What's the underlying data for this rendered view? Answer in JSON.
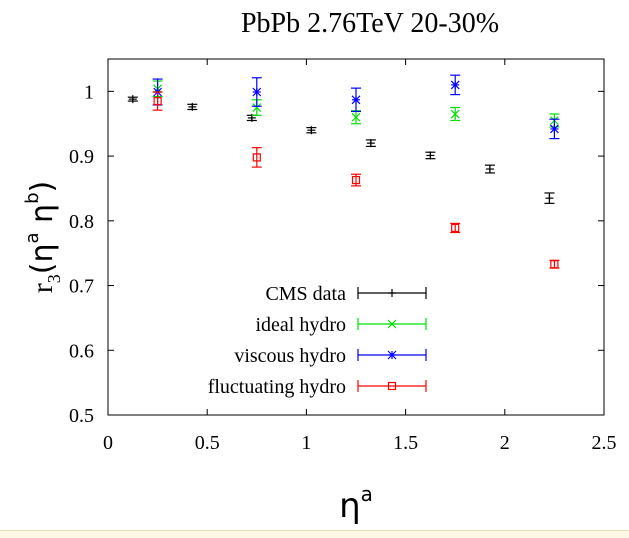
{
  "chart_data": {
    "type": "scatter",
    "title": "PbPb 2.76TeV 20-30%",
    "xlabel": "η",
    "xlabel_sup": "a",
    "ylabel": "r",
    "ylabel_sub": "3",
    "ylabel_rest": "(η",
    "ylabel_sup1": "a",
    "ylabel_mid": " η",
    "ylabel_sup2": "b",
    "ylabel_close": ")",
    "xlim": [
      0,
      2.5
    ],
    "ylim": [
      0.5,
      1.05
    ],
    "xticks": [
      0,
      0.5,
      1,
      1.5,
      2,
      2.5
    ],
    "xtick_labels": [
      "0",
      "0.5",
      "1",
      "1.5",
      "2",
      "2.5"
    ],
    "yticks": [
      0.5,
      0.6,
      0.7,
      0.8,
      0.9,
      1
    ],
    "ytick_labels": [
      "0.5",
      "0.6",
      "0.7",
      "0.8",
      "0.9",
      "1"
    ],
    "legend_position": "bottom-center",
    "series": [
      {
        "name": "CMS data",
        "color": "#000000",
        "marker": "plus",
        "points": [
          {
            "x": 0.125,
            "y": 0.988,
            "err": 0.003
          },
          {
            "x": 0.425,
            "y": 0.976,
            "err": 0.004
          },
          {
            "x": 0.725,
            "y": 0.959,
            "err": 0.004
          },
          {
            "x": 1.025,
            "y": 0.94,
            "err": 0.004
          },
          {
            "x": 1.325,
            "y": 0.92,
            "err": 0.005
          },
          {
            "x": 1.625,
            "y": 0.901,
            "err": 0.005
          },
          {
            "x": 1.925,
            "y": 0.88,
            "err": 0.006
          },
          {
            "x": 2.225,
            "y": 0.835,
            "err": 0.008
          }
        ]
      },
      {
        "name": "ideal hydro",
        "color": "#00e000",
        "marker": "x",
        "points": [
          {
            "x": 0.25,
            "y": 1.004,
            "err": 0.012
          },
          {
            "x": 0.75,
            "y": 0.975,
            "err": 0.012
          },
          {
            "x": 1.25,
            "y": 0.96,
            "err": 0.01
          },
          {
            "x": 1.75,
            "y": 0.965,
            "err": 0.01
          },
          {
            "x": 2.25,
            "y": 0.955,
            "err": 0.01
          }
        ]
      },
      {
        "name": "viscous hydro",
        "color": "#0000ff",
        "marker": "star",
        "points": [
          {
            "x": 0.25,
            "y": 0.999,
            "err": 0.02
          },
          {
            "x": 0.75,
            "y": 0.999,
            "err": 0.022
          },
          {
            "x": 1.25,
            "y": 0.987,
            "err": 0.018
          },
          {
            "x": 1.75,
            "y": 1.01,
            "err": 0.015
          },
          {
            "x": 2.25,
            "y": 0.942,
            "err": 0.015
          }
        ]
      },
      {
        "name": "fluctuating hydro",
        "color": "#ff0000",
        "marker": "square",
        "points": [
          {
            "x": 0.25,
            "y": 0.985,
            "err": 0.014
          },
          {
            "x": 0.75,
            "y": 0.898,
            "err": 0.015
          },
          {
            "x": 1.25,
            "y": 0.863,
            "err": 0.009
          },
          {
            "x": 1.75,
            "y": 0.789,
            "err": 0.007
          },
          {
            "x": 2.25,
            "y": 0.733,
            "err": 0.006
          }
        ]
      }
    ]
  }
}
